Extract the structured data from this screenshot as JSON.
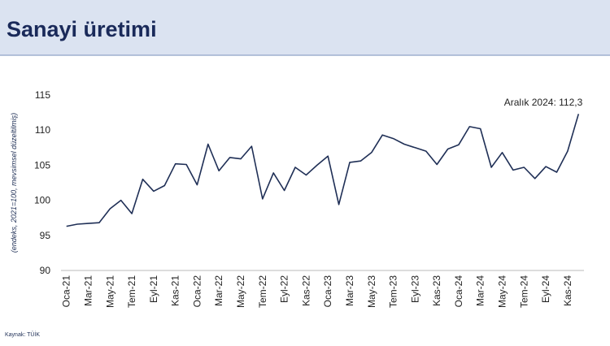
{
  "title": "Sanayi üretimi",
  "source": "Kaynak: TÜİK",
  "chart_data": {
    "type": "line",
    "y_label": "(endeks, 2021=100, mevsimsel düzeltilmiş)",
    "annotation": "Aralık 2024: 112,3",
    "categories": [
      "Oca-21",
      null,
      "Mar-21",
      null,
      "May-21",
      null,
      "Tem-21",
      null,
      "Eyl-21",
      null,
      "Kas-21",
      null,
      "Oca-22",
      null,
      "Mar-22",
      null,
      "May-22",
      null,
      "Tem-22",
      null,
      "Eyl-22",
      null,
      "Kas-22",
      null,
      "Oca-23",
      null,
      "Mar-23",
      null,
      "May-23",
      null,
      "Tem-23",
      null,
      "Eyl-23",
      null,
      "Kas-23",
      null,
      "Oca-24",
      null,
      "Mar-24",
      null,
      "May-24",
      null,
      "Tem-24",
      null,
      "Eyl-24",
      null,
      "Kas-24",
      null
    ],
    "values": [
      96.3,
      96.6,
      96.7,
      96.8,
      98.8,
      100.0,
      98.1,
      103.0,
      101.3,
      102.1,
      105.2,
      105.1,
      102.2,
      108.0,
      104.2,
      106.1,
      105.9,
      107.7,
      100.2,
      103.9,
      101.4,
      104.7,
      103.6,
      105.0,
      106.3,
      99.4,
      105.4,
      105.6,
      106.8,
      109.3,
      108.8,
      108.0,
      107.5,
      107.0,
      105.1,
      107.3,
      107.9,
      110.5,
      110.2,
      104.7,
      106.8,
      104.3,
      104.7,
      103.1,
      104.8,
      104.0,
      107.0,
      112.3
    ],
    "color": "#1f2f56",
    "ylim": [
      90,
      115
    ],
    "yticks": [
      90,
      95,
      100,
      105,
      110,
      115
    ],
    "grid": false
  }
}
